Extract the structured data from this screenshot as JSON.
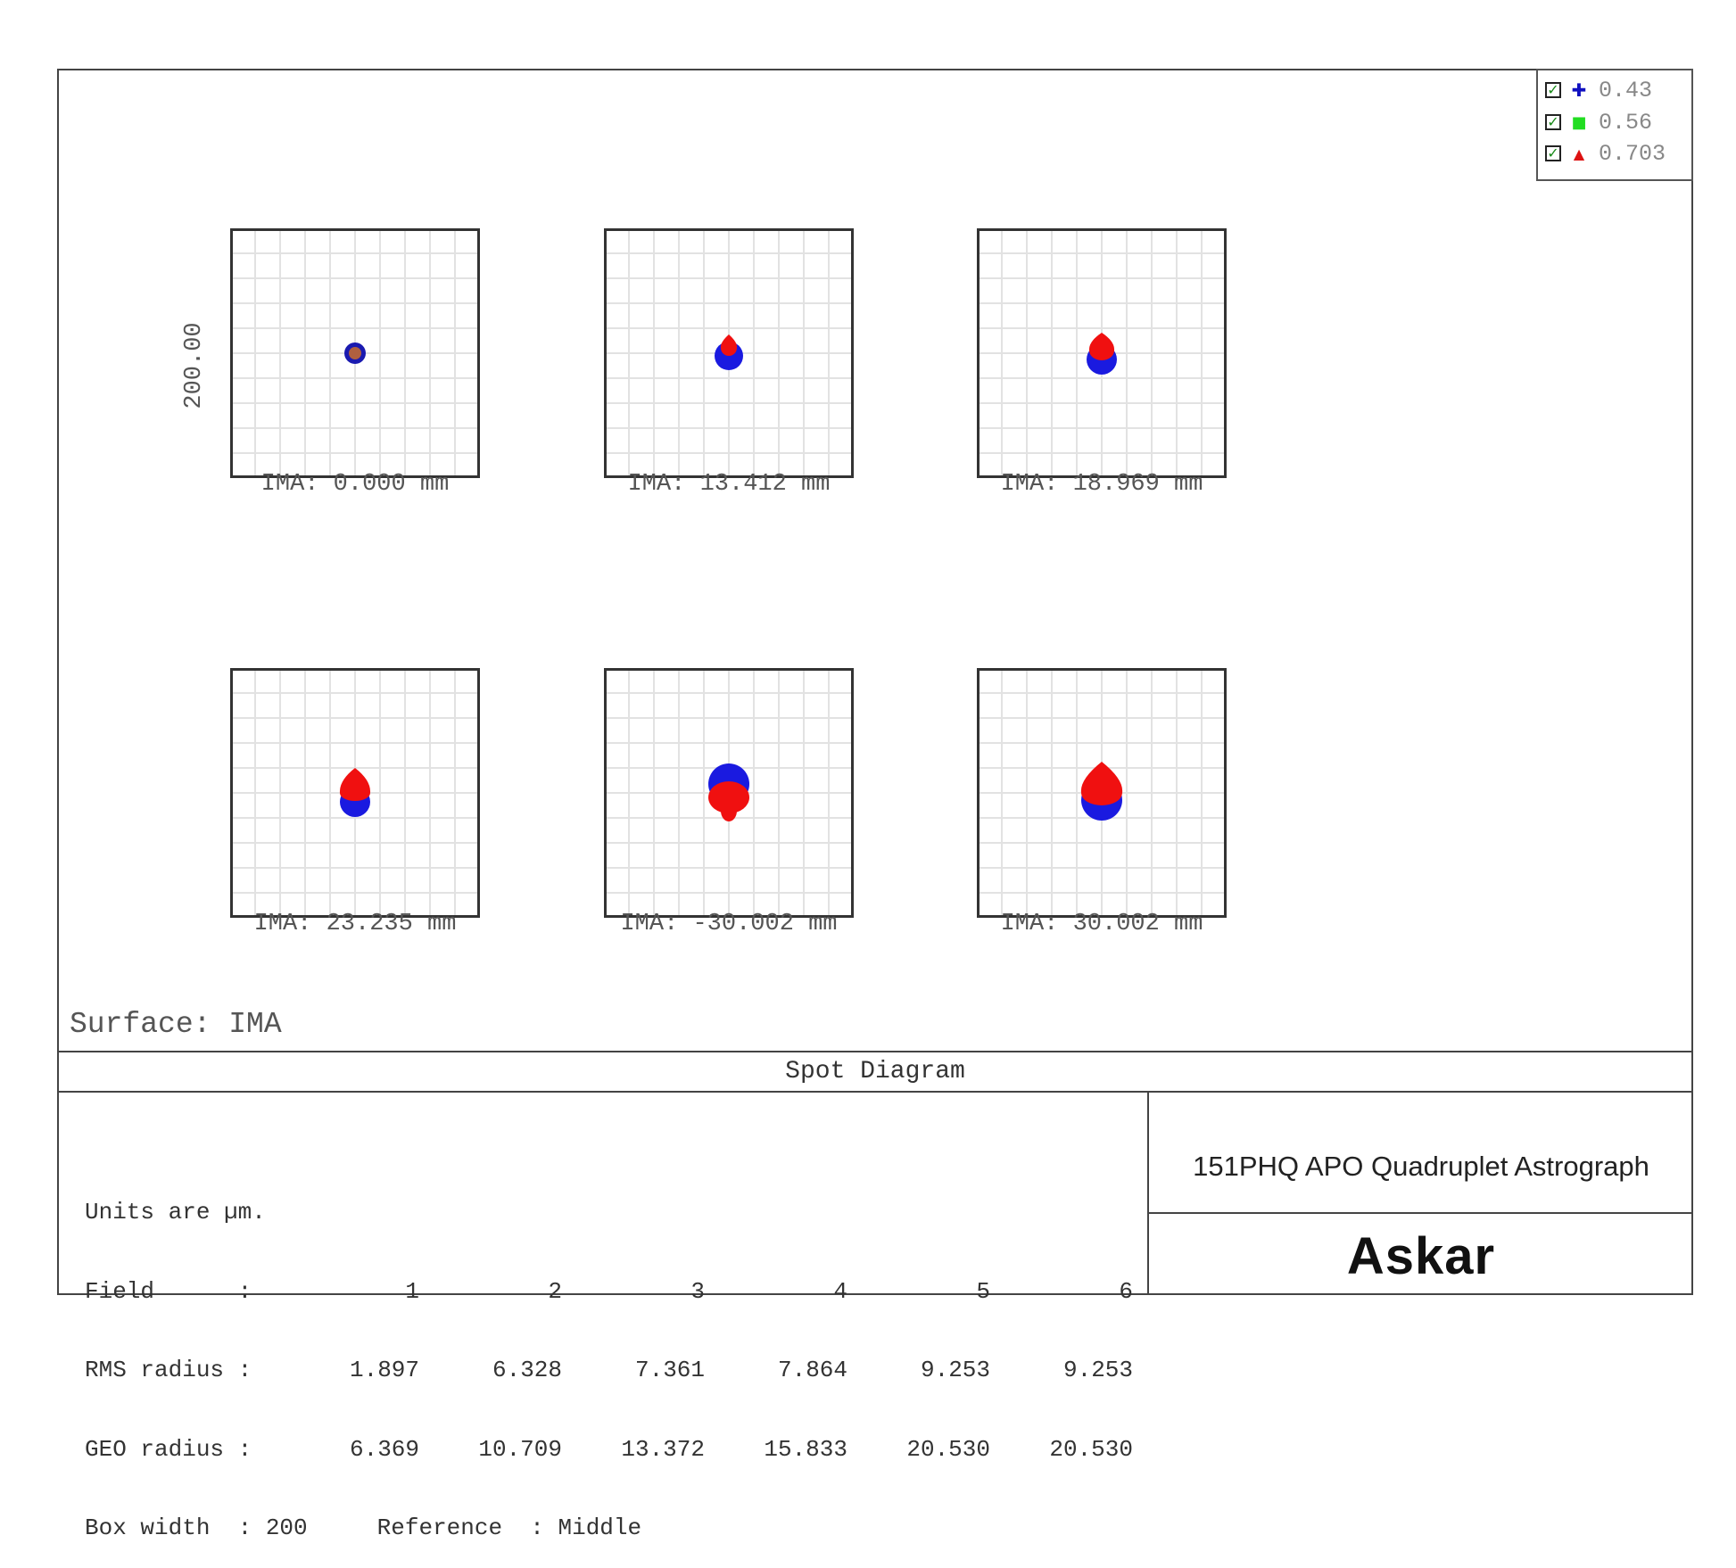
{
  "legend": [
    {
      "label": "0.43",
      "marker": "plus",
      "color": "#1010c0",
      "checked": true,
      "check": "✓",
      "glyph": "✚"
    },
    {
      "label": "0.56",
      "marker": "square",
      "color": "#22dd22",
      "checked": true,
      "check": "✓",
      "glyph": "■"
    },
    {
      "label": "0.703",
      "marker": "triangle",
      "color": "#dd1111",
      "checked": true,
      "check": "✓",
      "glyph": "▲"
    }
  ],
  "scale_label": "200.00",
  "fields": [
    {
      "label": "IMA: 0.000 mm"
    },
    {
      "label": "IMA: 13.412 mm"
    },
    {
      "label": "IMA: 18.969 mm"
    },
    {
      "label": "IMA: 23.235 mm"
    },
    {
      "label": "IMA: -30.002 mm"
    },
    {
      "label": "IMA: 30.002 mm"
    }
  ],
  "surface": "Surface: IMA",
  "title": "Spot Diagram",
  "table": {
    "units": "Units are µm.",
    "field_label": "Field      :",
    "field_values": [
      "1",
      "2",
      "3",
      "4",
      "5",
      "6"
    ],
    "rms_label": "RMS radius :",
    "rms_values": [
      "1.897",
      "6.328",
      "7.361",
      "7.864",
      "9.253",
      "9.253"
    ],
    "geo_label": "GEO radius :",
    "geo_values": [
      "6.369",
      "10.709",
      "13.372",
      "15.833",
      "20.530",
      "20.530"
    ],
    "box_width": "Box width  : 200     Reference  : Middle"
  },
  "product": "151PHQ APO Quadruplet Astrograph",
  "brand": "Askar",
  "colors": {
    "blue": "#1a1ae0",
    "red": "#f01010",
    "green": "#22dd22",
    "grid": "#e2e2e2"
  }
}
